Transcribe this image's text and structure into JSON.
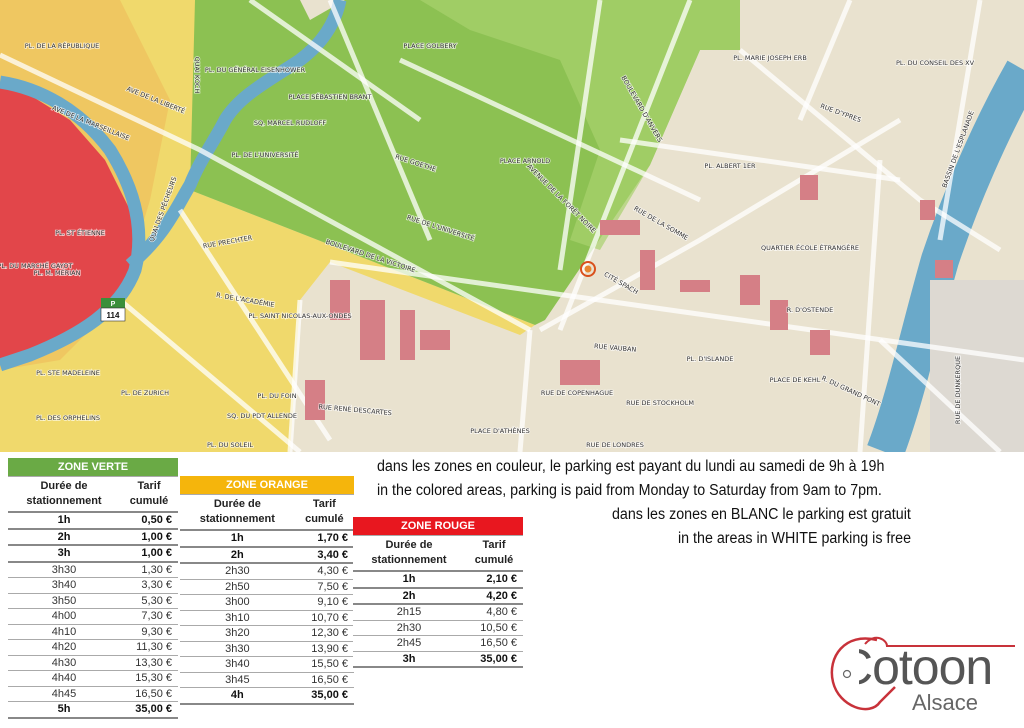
{
  "map": {
    "colors": {
      "red_zone": "#e2464a",
      "orange_zone": "#efc04a",
      "yellow_zone": "#f2e37a",
      "green_zone": "#8cc152",
      "free_zone": "#e9e2cf",
      "water": "#6aa9c9",
      "road": "#ffffff"
    },
    "labels": [
      "PL. DE LA RÉPUBLIQUE",
      "AVE DE LA LIBERTÉ",
      "AVE DE LA MARSEILLAISE",
      "QUAI KOCH",
      "PL. DU GÉNÉRAL EISENHOWER",
      "PLACE SÉBASTIEN BRANT",
      "SQ. MARCEL RUDLOFF",
      "PL. DE L'UNIVERSITÉ",
      "RUE GOETHE",
      "PLACE GOLBERY",
      "RUE DE L'UNIVERSITÉ",
      "BOULEVARD DE LA VICTOIRE",
      "QUAI DES PÊCHEURS",
      "RUE PRECHTER",
      "R. DE L'ACADÉMIE",
      "PL. SAINT NICOLAS-AUX-ONDES",
      "PL. DU MARCHÉ GAYOT",
      "PL. ST ÉTIENNE",
      "PL. M. MÉRIAN",
      "PL. DE ZURICH",
      "PL. DU FOIN",
      "SQ. DU PDT ALLENDE",
      "PL. DU SOLEIL",
      "PL. STE MADELEINE",
      "PL. DES ORPHELINS",
      "RUE RENÉ DESCARTES",
      "PLACE D'ATHÈNES",
      "PLACE ARNOLD",
      "AVENUE DE LA FORÊT NOIRE",
      "BOULEVARD D'ANVERS",
      "RUE DE LA SOMME",
      "PL. MARIE JOSEPH ERB",
      "PL. ALBERT 1ER",
      "PL. DU CONSEIL DES XV",
      "RUE D'YPRES",
      "QUARTIER ÉCOLE ÉTRANGÈRE",
      "R. D'OSTENDE",
      "RUE VAUBAN",
      "PL. D'ISLANDE",
      "PLACE DE KEHL",
      "R. DU GRAND PONT",
      "RUE DE COPENHAGUE",
      "RUE DE STOCKHOLM",
      "BASSIN DE L'ESPLANADE",
      "RUE DE DUNKERQUE",
      "CITÉ SPACH",
      "RUE DE LONDRES"
    ],
    "parking_badge": {
      "letter": "P",
      "number": "114"
    },
    "marker_icon": "location-target-icon"
  },
  "notice": {
    "line1": "dans les zones en couleur, le parking est payant du lundi au samedi de 9h à 19h",
    "line2": "in the colored areas, parking is paid from Monday to Saturday from 9am to 7pm.",
    "line3": "dans les zones en BLANC le parking est gratuit",
    "line4": "in the areas in WHITE parking is free"
  },
  "tables": [
    {
      "title": "ZONE VERTE",
      "color": "#6aaa45",
      "col1": "Durée de stationnement",
      "col2": "Tarif cumulé",
      "rows": [
        [
          "1h",
          "0,50 €",
          true
        ],
        [
          "2h",
          "1,00 €",
          true
        ],
        [
          "3h",
          "1,00 €",
          true
        ],
        [
          "3h30",
          "1,30 €",
          false
        ],
        [
          "3h40",
          "3,30 €",
          false
        ],
        [
          "3h50",
          "5,30 €",
          false
        ],
        [
          "4h00",
          "7,30 €",
          false
        ],
        [
          "4h10",
          "9,30 €",
          false
        ],
        [
          "4h20",
          "11,30 €",
          false
        ],
        [
          "4h30",
          "13,30 €",
          false
        ],
        [
          "4h40",
          "15,30 €",
          false
        ],
        [
          "4h45",
          "16,50 €",
          false
        ],
        [
          "5h",
          "35,00 €",
          true
        ]
      ]
    },
    {
      "title": "ZONE ORANGE",
      "color": "#f5b50c",
      "col1": "Durée de stationnement",
      "col2": "Tarif cumulé",
      "rows": [
        [
          "1h",
          "1,70 €",
          true
        ],
        [
          "2h",
          "3,40 €",
          true
        ],
        [
          "2h30",
          "4,30 €",
          false
        ],
        [
          "2h50",
          "7,50 €",
          false
        ],
        [
          "3h00",
          "9,10 €",
          false
        ],
        [
          "3h10",
          "10,70 €",
          false
        ],
        [
          "3h20",
          "12,30 €",
          false
        ],
        [
          "3h30",
          "13,90 €",
          false
        ],
        [
          "3h40",
          "15,50 €",
          false
        ],
        [
          "3h45",
          "16,50 €",
          false
        ],
        [
          "4h",
          "35,00 €",
          true
        ]
      ]
    },
    {
      "title": "ZONE ROUGE",
      "color": "#e8171f",
      "col1": "Durée de stationnement",
      "col2": "Tarif cumulé",
      "rows": [
        [
          "1h",
          "2,10 €",
          true
        ],
        [
          "2h",
          "4,20 €",
          true
        ],
        [
          "2h15",
          "4,80 €",
          false
        ],
        [
          "2h30",
          "10,50 €",
          false
        ],
        [
          "2h45",
          "16,50 €",
          false
        ],
        [
          "3h",
          "35,00 €",
          true
        ]
      ]
    }
  ],
  "logo": {
    "name": "Cotoon",
    "sub": "Alsace",
    "color": "#c8323a"
  }
}
